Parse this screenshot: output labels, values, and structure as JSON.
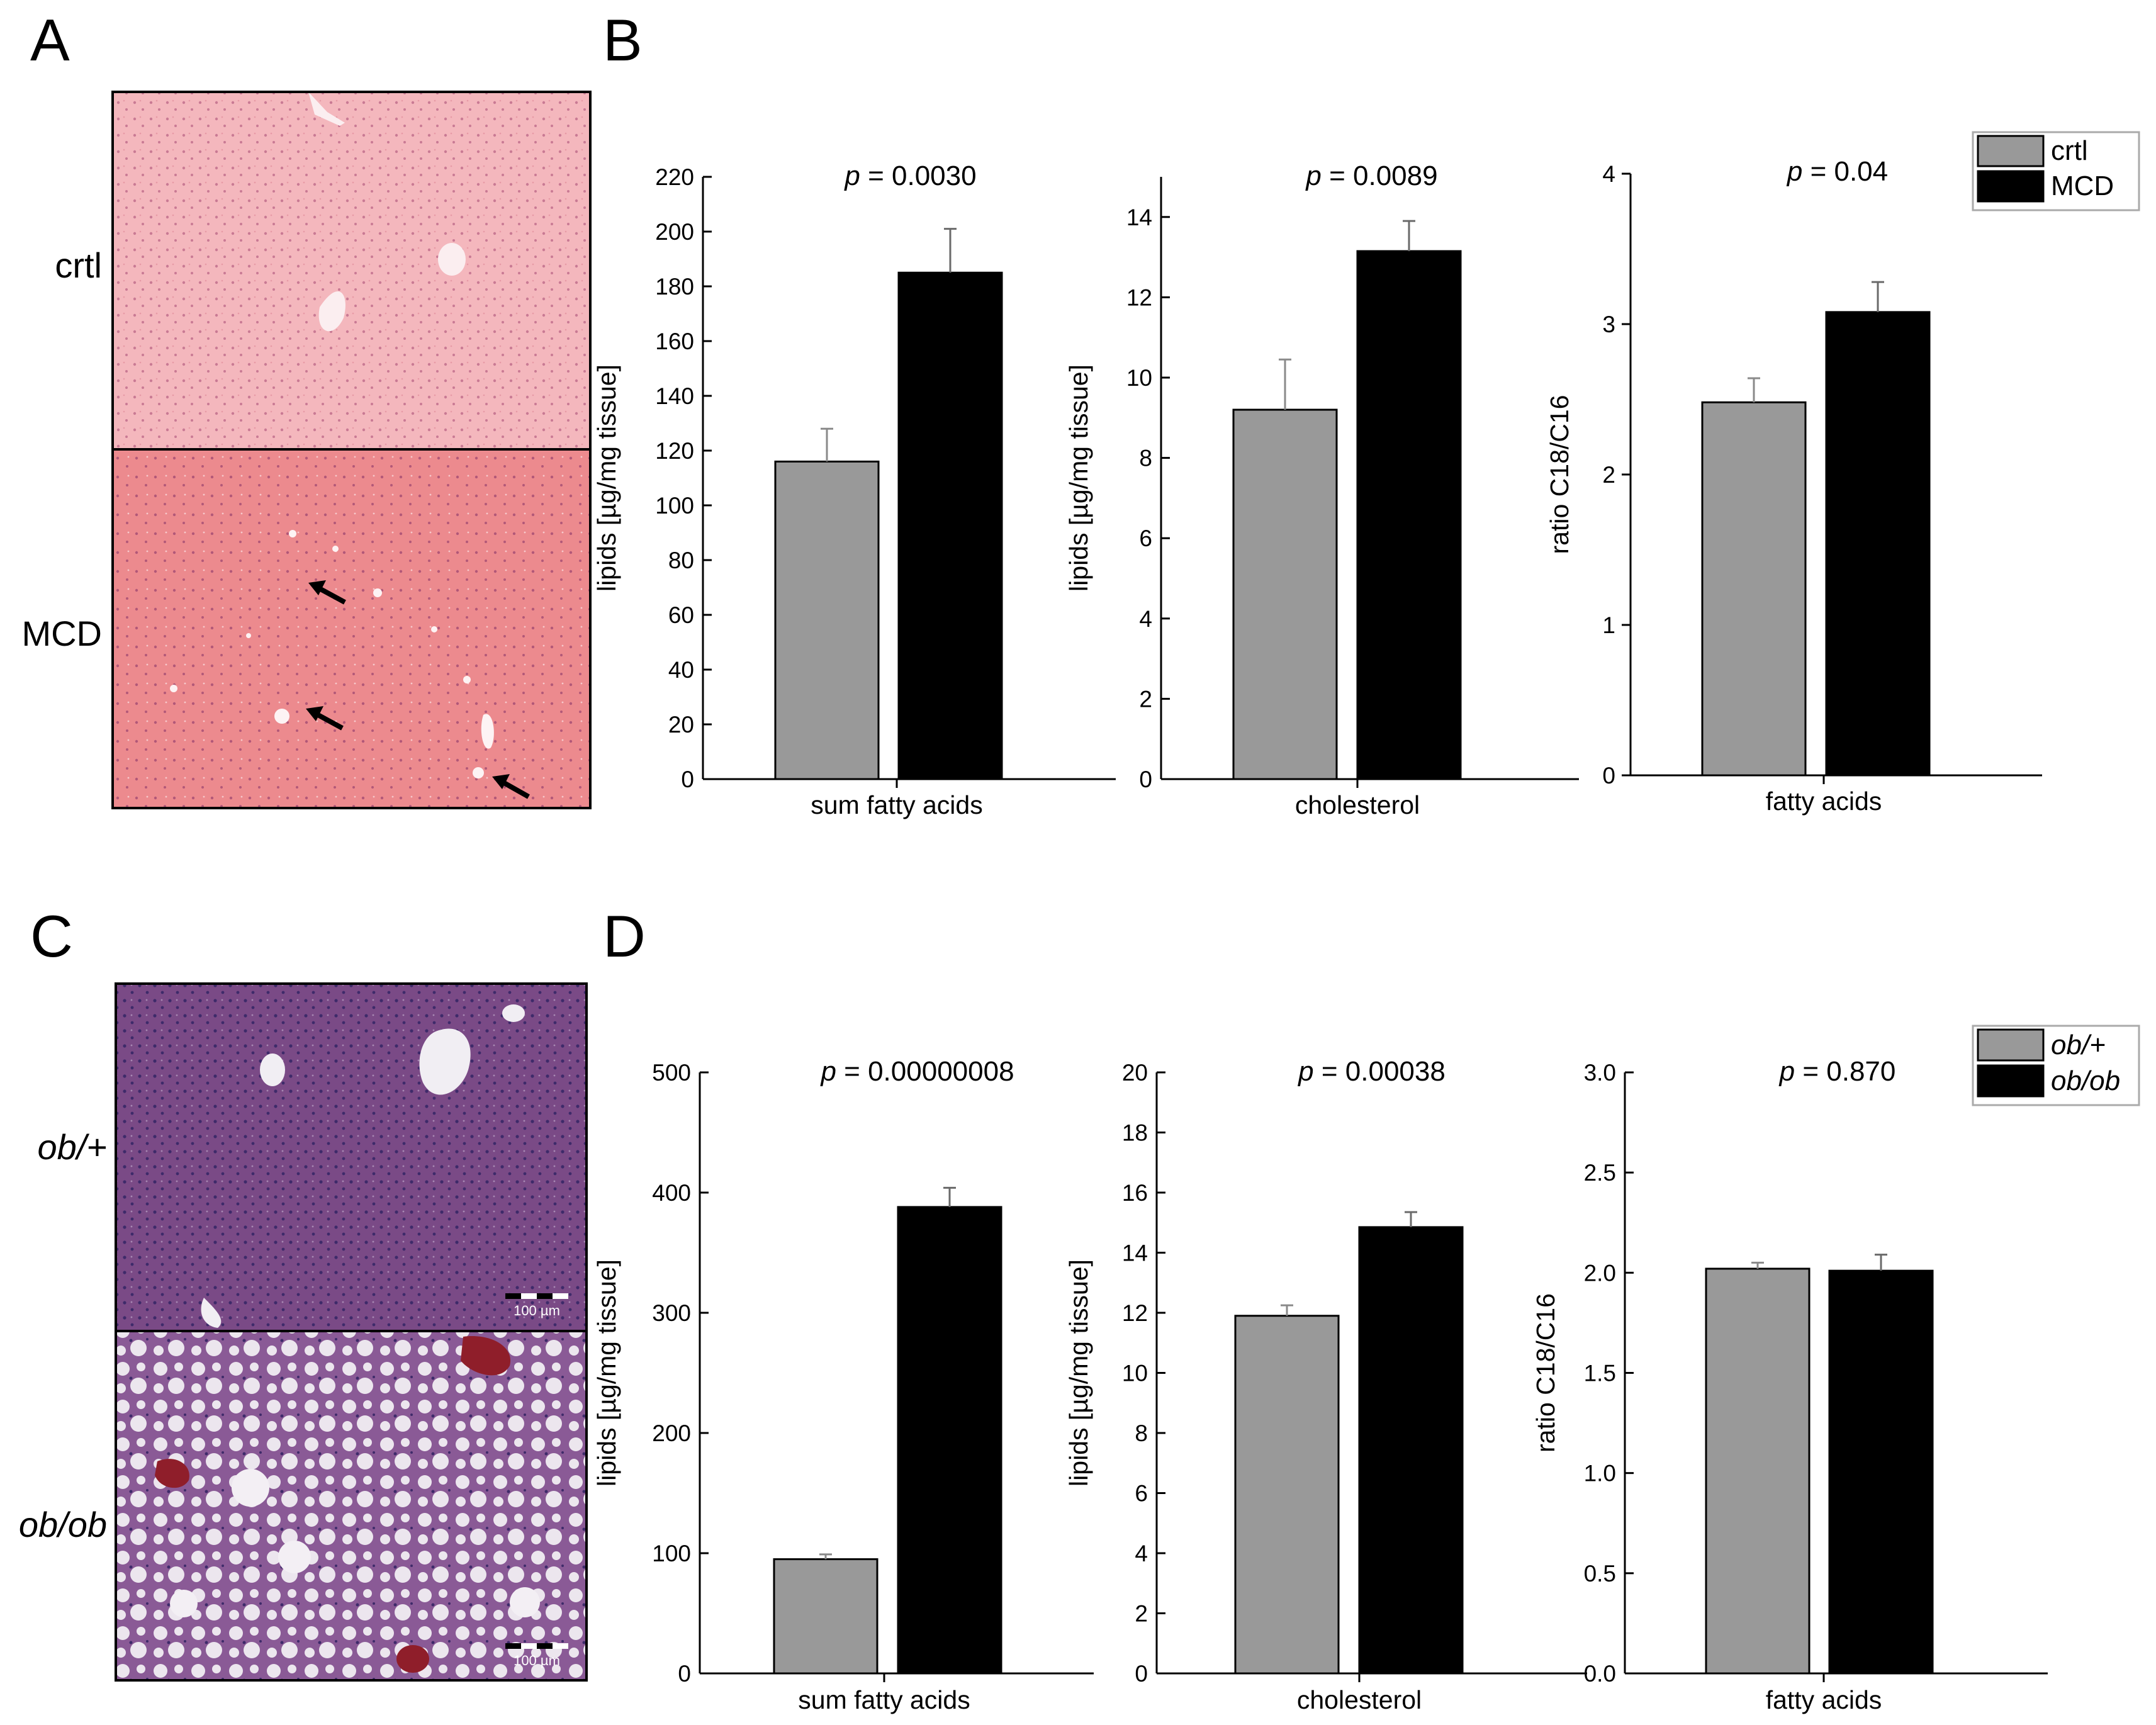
{
  "panels": {
    "A": {
      "letter": "A",
      "rows": [
        {
          "label": "crtl",
          "tone": "light-pink"
        },
        {
          "label": "MCD",
          "tone": "pink",
          "arrows": 3
        }
      ]
    },
    "B": {
      "letter": "B"
    },
    "C": {
      "letter": "C",
      "rows": [
        {
          "label": "ob/+",
          "tone": "purple",
          "scalebar": "100 µm"
        },
        {
          "label": "ob/ob",
          "tone": "purple-steatotic",
          "scalebar": "100 µm"
        }
      ]
    },
    "D": {
      "letter": "D"
    }
  },
  "colors": {
    "control_bar": "#999999",
    "treated_bar": "#000000",
    "he_light": "#f4b7bd",
    "he_pink": "#ec8a8e",
    "he_purple": "#7a4a86"
  },
  "chart_data": [
    {
      "type": "bar",
      "panel": "B",
      "categories": [
        "crtl",
        "MCD"
      ],
      "values": [
        116,
        185
      ],
      "errors": [
        12,
        16
      ],
      "ylabel": "lipids [µg/mg tissue]",
      "xlabel": "sum fatty acids",
      "ylim": [
        0,
        220
      ],
      "yticks": [
        0,
        20,
        40,
        60,
        80,
        100,
        120,
        140,
        160,
        180,
        200,
        220
      ],
      "pvalue": "= 0.0030"
    },
    {
      "type": "bar",
      "panel": "B",
      "categories": [
        "crtl",
        "MCD"
      ],
      "values": [
        9.2,
        13.15
      ],
      "errors": [
        1.25,
        0.75
      ],
      "ylabel": "lipids [µg/mg tissue]",
      "xlabel": "cholesterol",
      "ylim": [
        0,
        15
      ],
      "yticks": [
        0,
        2,
        4,
        6,
        8,
        10,
        12,
        14
      ],
      "pvalue": "= 0.0089"
    },
    {
      "type": "bar",
      "panel": "B",
      "categories": [
        "crtl",
        "MCD"
      ],
      "values": [
        2.48,
        3.08
      ],
      "errors": [
        0.16,
        0.2
      ],
      "ylabel": "ratio C18/C16",
      "xlabel": "fatty acids",
      "ylim": [
        0,
        4
      ],
      "yticks": [
        0,
        1,
        2,
        3,
        4
      ],
      "pvalue": "= 0.04",
      "legend": [
        {
          "label": "crtl",
          "italic": false
        },
        {
          "label": "MCD",
          "italic": false
        }
      ]
    },
    {
      "type": "bar",
      "panel": "D",
      "categories": [
        "ob/+",
        "ob/ob"
      ],
      "values": [
        95,
        388
      ],
      "errors": [
        4,
        16
      ],
      "ylabel": "lipids [µg/mg tissue]",
      "xlabel": "sum fatty acids",
      "ylim": [
        0,
        500
      ],
      "yticks": [
        0,
        100,
        200,
        300,
        400,
        500
      ],
      "pvalue": "= 0.00000008"
    },
    {
      "type": "bar",
      "panel": "D",
      "categories": [
        "ob/+",
        "ob/ob"
      ],
      "values": [
        11.9,
        14.85
      ],
      "errors": [
        0.35,
        0.5
      ],
      "ylabel": "lipids [µg/mg tissue]",
      "xlabel": "cholesterol",
      "ylim": [
        0,
        20
      ],
      "yticks": [
        0,
        2,
        4,
        6,
        8,
        10,
        12,
        14,
        16,
        18,
        20
      ],
      "pvalue": "= 0.00038"
    },
    {
      "type": "bar",
      "panel": "D",
      "categories": [
        "ob/+",
        "ob/ob"
      ],
      "values": [
        2.02,
        2.01
      ],
      "errors": [
        0.03,
        0.08
      ],
      "ylabel": "ratio C18/C16",
      "xlabel": "fatty acids",
      "ylim": [
        0,
        3
      ],
      "yticks": [
        "0.0",
        "0.5",
        "1.0",
        "1.5",
        "2.0",
        "2.5",
        "3.0"
      ],
      "pvalue": "= 0.870",
      "legend": [
        {
          "label": "ob/+",
          "italic": true
        },
        {
          "label": "ob/ob",
          "italic": true
        }
      ]
    }
  ]
}
